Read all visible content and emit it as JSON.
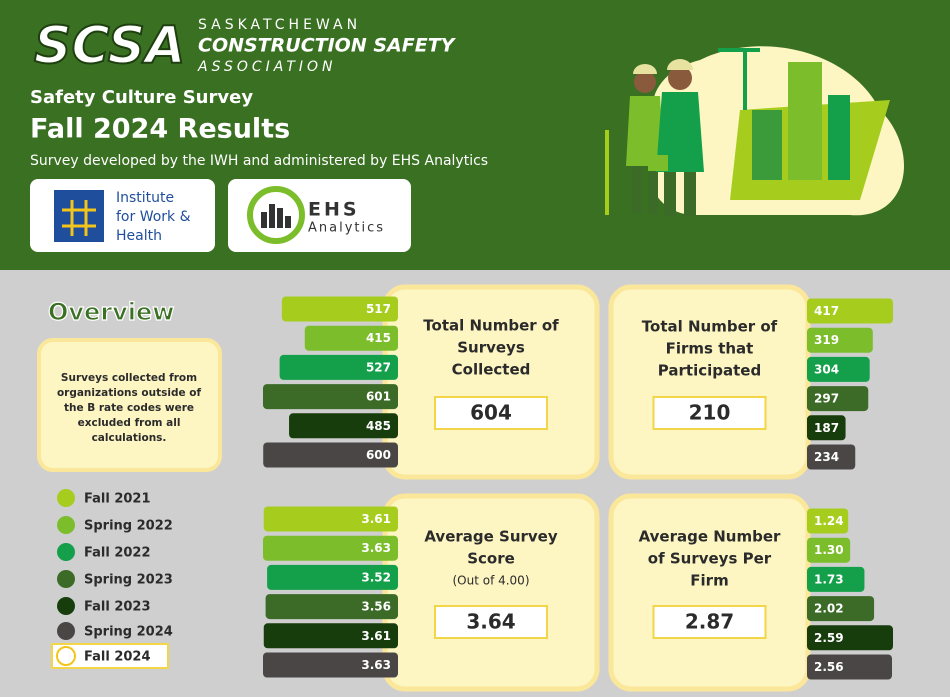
{
  "header": {
    "logo": "SCSA",
    "org_line1": "SASKATCHEWAN",
    "org_line2": "CONSTRUCTION SAFETY",
    "org_line3": "ASSOCIATION",
    "survey": "Safety Culture Survey",
    "title": "Fall 2024 Results",
    "subtitle": "Survey developed by the IWH and administered by EHS Analytics",
    "partner1_lines": [
      "Institute",
      "for Work &",
      "Health"
    ],
    "partner2_line1": "EHS",
    "partner2_line2": "Analytics"
  },
  "overview": {
    "title": "Overview",
    "note_lines": [
      "Surveys collected from",
      "organizations outside of",
      "the B rate codes were",
      "excluded from all",
      "calculations."
    ]
  },
  "legend": [
    {
      "name": "Fall 2021",
      "color": "#a6cd1e"
    },
    {
      "name": "Spring 2022",
      "color": "#7cbd2b"
    },
    {
      "name": "Fall 2022",
      "color": "#14a04b"
    },
    {
      "name": "Spring 2023",
      "color": "#3b6b27"
    },
    {
      "name": "Fall 2023",
      "color": "#173d0c"
    },
    {
      "name": "Spring 2024",
      "color": "#4a4646"
    },
    {
      "name": "Fall 2024",
      "color": "#ffffff"
    }
  ],
  "panels": [
    {
      "title_lines": [
        "Total Number of",
        "Surveys",
        "Collected"
      ],
      "value": 604,
      "values": [
        517,
        415,
        527,
        601,
        485,
        600
      ]
    },
    {
      "title_lines": [
        "Total Number of",
        "Firms that",
        "Participated"
      ],
      "value": 210,
      "values": [
        417,
        319,
        304,
        297,
        187,
        234
      ]
    },
    {
      "title_lines": [
        "Average Survey",
        "Score"
      ],
      "note": "(Out of 4.00)",
      "value": 3.64,
      "values": [
        3.61,
        3.63,
        3.52,
        3.56,
        3.61,
        3.63
      ]
    },
    {
      "title_lines": [
        "Average Number",
        "of Surveys Per",
        "Firm"
      ],
      "value": 2.87,
      "values": [
        1.24,
        1.3,
        1.73,
        2.02,
        2.59,
        2.56
      ],
      "value_labels": [
        "1.24",
        "1.30",
        "1.73",
        "2.02",
        "2.59",
        "2.56"
      ]
    }
  ]
}
